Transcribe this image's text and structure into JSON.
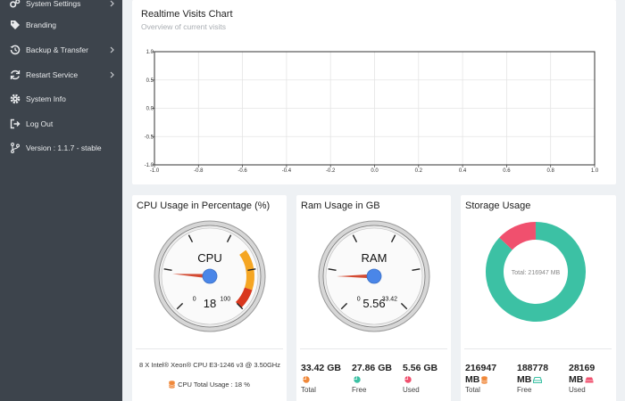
{
  "sidebar": {
    "items": [
      {
        "label": "System Settings",
        "icon": "gears-icon",
        "chevron": true
      },
      {
        "label": "Branding",
        "icon": "tag-icon",
        "chevron": false
      },
      {
        "label": "Backup & Transfer",
        "icon": "history-icon",
        "chevron": true
      },
      {
        "label": "Restart Service",
        "icon": "refresh-icon",
        "chevron": true
      },
      {
        "label": "System Info",
        "icon": "gear-icon",
        "chevron": false
      },
      {
        "label": "Log Out",
        "icon": "logout-icon",
        "chevron": false
      },
      {
        "label": "Version : 1.1.7 - stable",
        "icon": "branch-icon",
        "chevron": false
      }
    ]
  },
  "visits": {
    "title": "Realtime Visits Chart",
    "subtitle": "Overview of current visits"
  },
  "chart_data": {
    "type": "line",
    "x": [],
    "series": [],
    "xlim": [
      -1.0,
      1.0
    ],
    "ylim": [
      -1.0,
      1.0
    ],
    "x_ticks": [
      "-1.0",
      "-0.8",
      "-0.6",
      "-0.4",
      "-0.2",
      "0.0",
      "0.2",
      "0.4",
      "0.6",
      "0.8",
      "1.0"
    ],
    "y_ticks": [
      "1.0",
      "0.5",
      "0.0",
      "-0.5",
      "-1.0"
    ],
    "grid": true
  },
  "cpu": {
    "title": "CPU Usage in Percentage (%)",
    "gauge_label": "CPU",
    "value": 18,
    "value_text": "18",
    "min_label": "0",
    "max_label": "100",
    "max": 100,
    "processor": "8 X Intel® Xeon® CPU E3-1246 v3 @ 3.50GHz",
    "total_usage": "CPU Total Usage : 18 %"
  },
  "ram": {
    "title": "Ram Usage in GB",
    "gauge_label": "RAM",
    "value": 5.56,
    "value_text": "5.56",
    "min_label": "0",
    "max_label": "33.42",
    "max": 33.42,
    "stats": [
      {
        "value": "33.42 GB",
        "label": "Total",
        "color": "#f0883a",
        "icon": "pie-icon"
      },
      {
        "value": "27.86 GB",
        "label": "Free",
        "color": "#3cc1a4",
        "icon": "pie-icon"
      },
      {
        "value": "5.56 GB",
        "label": "Used",
        "color": "#f0506e",
        "icon": "pie-icon"
      }
    ]
  },
  "storage": {
    "title": "Storage Usage",
    "center_text": "Total: 216947 MB",
    "total": 216947,
    "used": 28169,
    "colors": {
      "free": "#3cc1a4",
      "used": "#f0506e"
    },
    "stats": [
      {
        "value_line1": "216947",
        "value_line2": "MB",
        "label": "Total",
        "color": "#f0883a",
        "icon": "database-icon"
      },
      {
        "value_line1": "188778",
        "value_line2": "MB",
        "label": "Free",
        "color": "#3cc1a4",
        "icon": "hdd-icon"
      },
      {
        "value_line1": "28169",
        "value_line2": "MB",
        "label": "Used",
        "color": "#f0506e",
        "icon": "hdd-icon"
      }
    ]
  }
}
